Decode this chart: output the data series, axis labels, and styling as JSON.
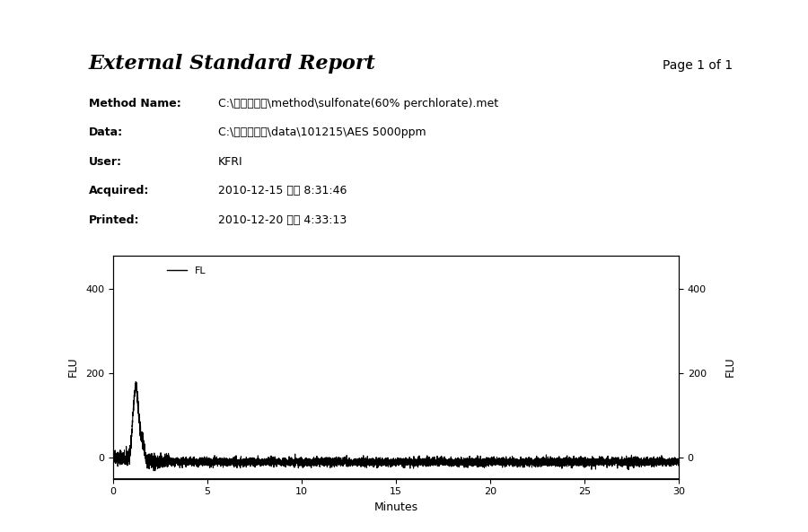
{
  "title": "External Standard Report",
  "page": "Page 1 of 1",
  "metadata": [
    [
      "Method Name:",
      "C:\\계면활성제\\method\\sulfonate(60% perchlorate).met"
    ],
    [
      "Data:",
      "C:\\계면활성제\\data\\101215\\AES 5000ppm"
    ],
    [
      "User:",
      "KFRI"
    ],
    [
      "Acquired:",
      "2010-12-15 오후 8:31:46"
    ],
    [
      "Printed:",
      "2010-12-20 오후 4:33:13"
    ]
  ],
  "xlabel": "Minutes",
  "ylabel_left": "FLU",
  "ylabel_right": "FLU",
  "legend_label": "FL",
  "xlim": [
    0,
    30
  ],
  "ylim": [
    -50,
    480
  ],
  "yticks": [
    0,
    200,
    400
  ],
  "xticks": [
    0,
    5,
    10,
    15,
    20,
    25,
    30
  ],
  "background_color": "#ffffff",
  "line_color": "#000000"
}
